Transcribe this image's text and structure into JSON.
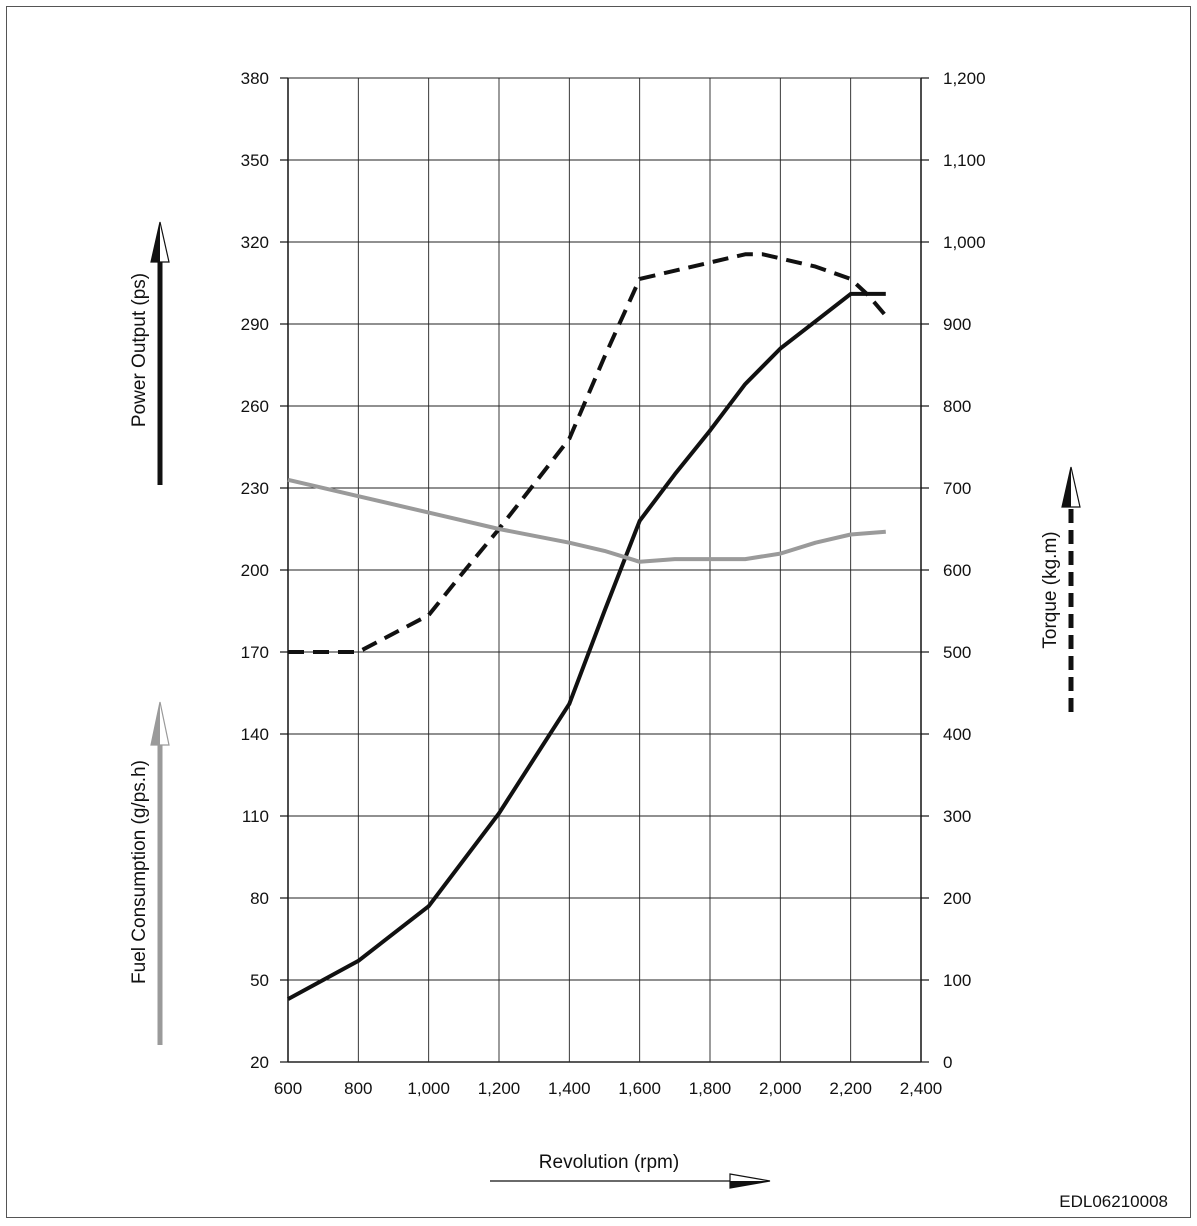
{
  "chart_data": {
    "type": "line",
    "xlabel": "Revolution (rpm)",
    "x_ticks": [
      "600",
      "800",
      "1,000",
      "1,200",
      "1,400",
      "1,600",
      "1,800",
      "2,000",
      "2,200",
      "2,400"
    ],
    "xlim": [
      600,
      2400
    ],
    "left_axis": {
      "label_power": "Power Output (ps)",
      "label_fuel": "Fuel Consumption (g/ps.h)",
      "ticks": [
        "20",
        "50",
        "80",
        "110",
        "140",
        "170",
        "200",
        "230",
        "260",
        "290",
        "320",
        "350",
        "380"
      ],
      "ylim": [
        20,
        380
      ]
    },
    "right_axis": {
      "label": "Torque (kg.m)",
      "ticks": [
        "0",
        "100",
        "200",
        "300",
        "400",
        "500",
        "600",
        "700",
        "800",
        "900",
        "1,000",
        "1,100",
        "1,200"
      ],
      "ylim": [
        0,
        1200
      ]
    },
    "grid": true,
    "series": [
      {
        "key": "power",
        "axis": "left",
        "style": "solid-black",
        "x": [
          600,
          800,
          1000,
          1200,
          1400,
          1500,
          1600,
          1700,
          1800,
          1900,
          2000,
          2100,
          2200,
          2300
        ],
        "y": [
          43,
          57,
          77,
          111,
          151,
          185,
          218,
          235,
          251,
          268,
          281,
          291,
          301,
          301
        ]
      },
      {
        "key": "torque",
        "axis": "right",
        "style": "dashed-black",
        "x": [
          600,
          800,
          1000,
          1100,
          1200,
          1300,
          1400,
          1500,
          1600,
          1700,
          1800,
          1900,
          1950,
          2000,
          2100,
          2200,
          2250,
          2300
        ],
        "y": [
          500,
          500,
          545,
          598,
          650,
          705,
          760,
          860,
          955,
          965,
          975,
          985,
          985,
          980,
          970,
          955,
          935,
          910
        ]
      },
      {
        "key": "fuel",
        "axis": "left",
        "style": "solid-gray",
        "x": [
          600,
          800,
          1000,
          1200,
          1400,
          1500,
          1600,
          1700,
          1800,
          1900,
          2000,
          2100,
          2200,
          2300
        ],
        "y": [
          233,
          227,
          221,
          215,
          210,
          207,
          203,
          204,
          204,
          204,
          206,
          210,
          213,
          214
        ]
      }
    ],
    "colors": {
      "power": "#111111",
      "torque": "#111111",
      "fuel": "#9a9a9a",
      "grid": "#222222"
    }
  },
  "figure_code": "EDL06210008"
}
